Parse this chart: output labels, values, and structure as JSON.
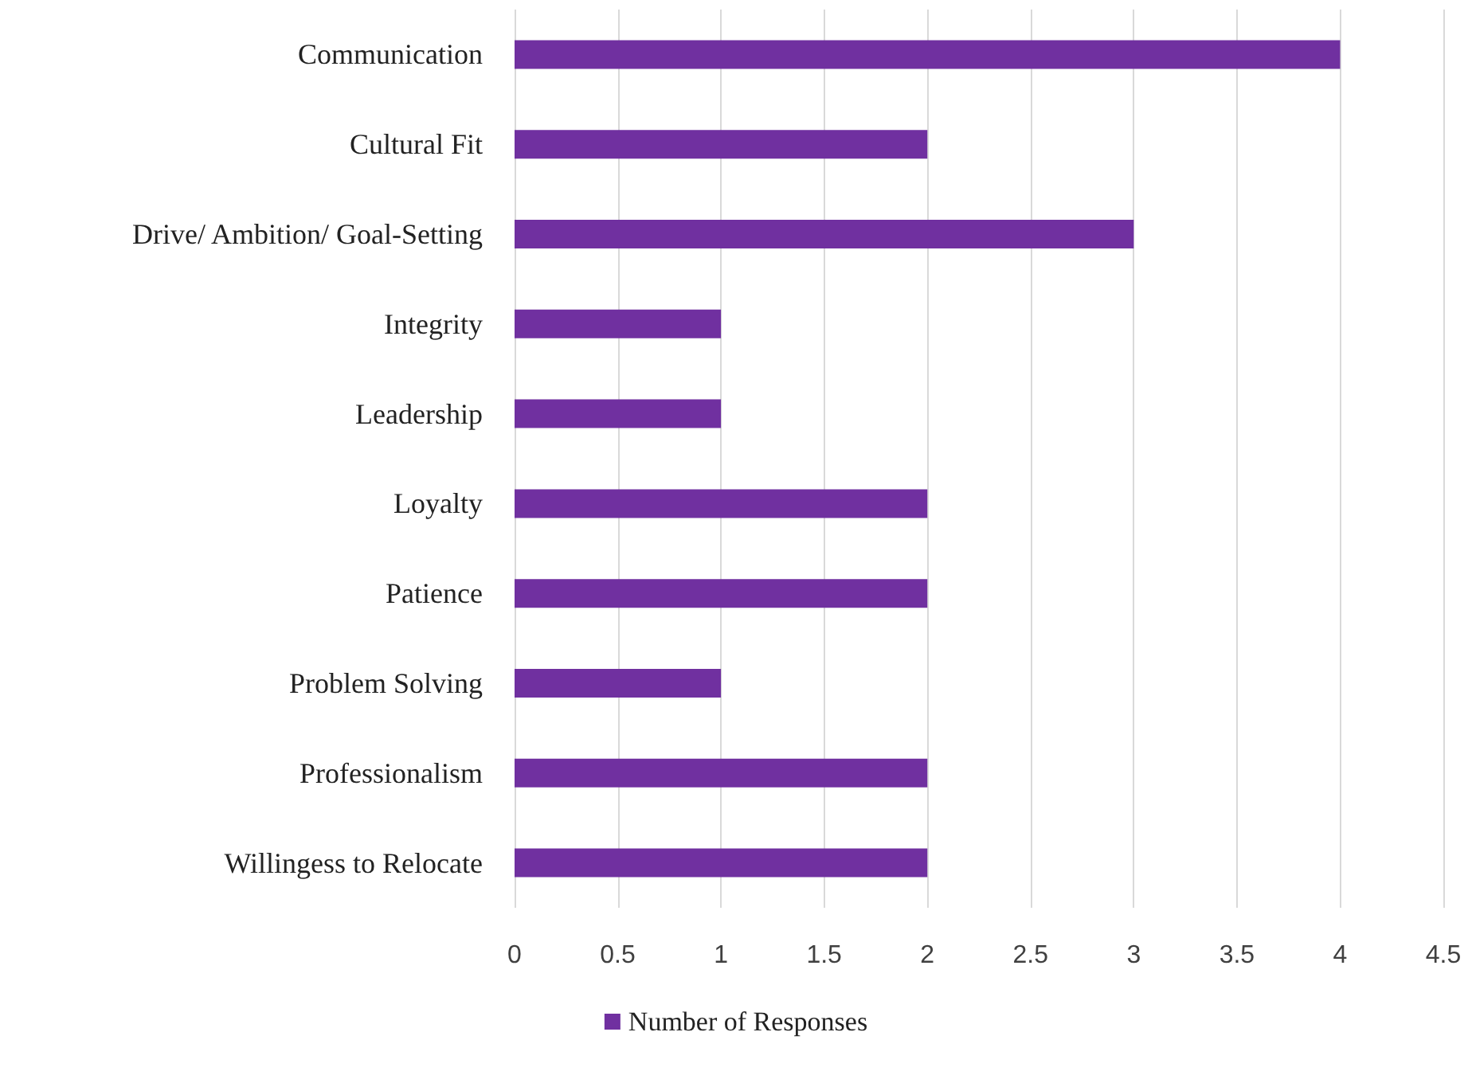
{
  "chart_data": {
    "type": "bar",
    "orientation": "horizontal",
    "categories": [
      "Communication",
      "Cultural Fit",
      "Drive/ Ambition/ Goal-Setting",
      "Integrity",
      "Leadership",
      "Loyalty",
      "Patience",
      "Problem Solving",
      "Professionalism",
      "Willingess to Relocate"
    ],
    "series": [
      {
        "name": "Number of Responses",
        "color": "#7030a0",
        "values": [
          4,
          2,
          3,
          1,
          1,
          2,
          2,
          1,
          2,
          2
        ]
      }
    ],
    "xlim": [
      0,
      4.5
    ],
    "xticks": [
      0,
      0.5,
      1,
      1.5,
      2,
      2.5,
      3,
      3.5,
      4,
      4.5
    ],
    "grid": "x",
    "legend": "bottom"
  }
}
